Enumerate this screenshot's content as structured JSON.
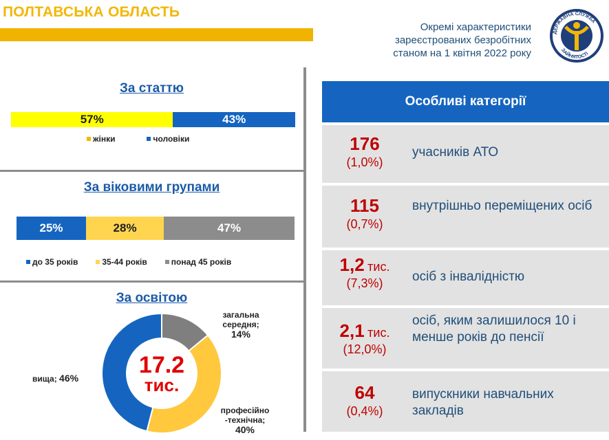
{
  "header": {
    "region": "ПОЛТАВСЬКА ОБЛАСТЬ",
    "subtitle_lines": [
      "Окремі характеристики",
      "зареєстрованих безробітних",
      "станом на 1 квітня 2022 року"
    ],
    "logo_text": "ДЕРЖАВНА СЛУЖБА ЗАЙНЯТОСТІ"
  },
  "gender": {
    "title": "За статтю",
    "segments": [
      {
        "label": "57%",
        "value": 57,
        "color": "#ffff00",
        "text_color": "#1f1f1f"
      },
      {
        "label": "43%",
        "value": 43,
        "color": "#1565c0",
        "text_color": "#ffffff"
      }
    ],
    "legend": [
      {
        "label": "жінки",
        "color": "#f2b705"
      },
      {
        "label": "чоловіки",
        "color": "#1565c0"
      }
    ]
  },
  "age": {
    "title": "За віковими групами",
    "segments": [
      {
        "label": "25%",
        "value": 25,
        "color": "#1565c0",
        "text_color": "#ffffff"
      },
      {
        "label": "28%",
        "value": 28,
        "color": "#ffd54f",
        "text_color": "#1f1f1f"
      },
      {
        "label": "47%",
        "value": 47,
        "color": "#8c8c8c",
        "text_color": "#ffffff"
      }
    ],
    "legend": [
      {
        "label": "до 35 років",
        "color": "#1565c0"
      },
      {
        "label": "35-44 років",
        "color": "#ffd54f"
      },
      {
        "label": "понад 45 років",
        "color": "#8c8c8c"
      }
    ]
  },
  "education": {
    "title": "За освітою",
    "center_value": "17.2",
    "center_unit": "тис.",
    "labels": {
      "general": {
        "line1": "загальна",
        "line2": "середня;",
        "pct": "14%"
      },
      "vocational": {
        "line1": "професійно",
        "line2": "-технічна;",
        "pct": "40%"
      },
      "higher": {
        "name": "вища;",
        "pct": "46%"
      }
    }
  },
  "chart_data": [
    {
      "type": "bar",
      "title": "За статтю",
      "categories": [
        "жінки",
        "чоловіки"
      ],
      "values": [
        57,
        43
      ],
      "unit": "%"
    },
    {
      "type": "bar",
      "title": "За віковими групами",
      "categories": [
        "до 35 років",
        "35-44 років",
        "понад 45 років"
      ],
      "values": [
        25,
        28,
        47
      ],
      "unit": "%"
    },
    {
      "type": "pie",
      "title": "За освітою",
      "categories": [
        "загальна середня",
        "професійно-технічна",
        "вища"
      ],
      "values": [
        14,
        40,
        46
      ],
      "colors": [
        "#7f7f7f",
        "#ffc83d",
        "#1565c0"
      ],
      "unit": "%"
    }
  ],
  "categories": {
    "title": "Особливі категорії",
    "items": [
      {
        "num": "176",
        "unit": "",
        "pct": "(1,0%)",
        "text": "учасників АТО"
      },
      {
        "num": "115",
        "unit": "",
        "pct": "(0,7%)",
        "text": "внутрішньо переміщених осіб"
      },
      {
        "num": "1,2",
        "unit": "тис.",
        "pct": "(7,3%)",
        "text": "осіб з інвалідністю"
      },
      {
        "num": "2,1",
        "unit": "тис.",
        "pct": "(12,0%)",
        "text": "осіб, яким залишилося 10 і менше років до пенсії"
      },
      {
        "num": "64",
        "unit": "",
        "pct": "(0,4%)",
        "text": "випускники навчальних закладів"
      }
    ]
  }
}
